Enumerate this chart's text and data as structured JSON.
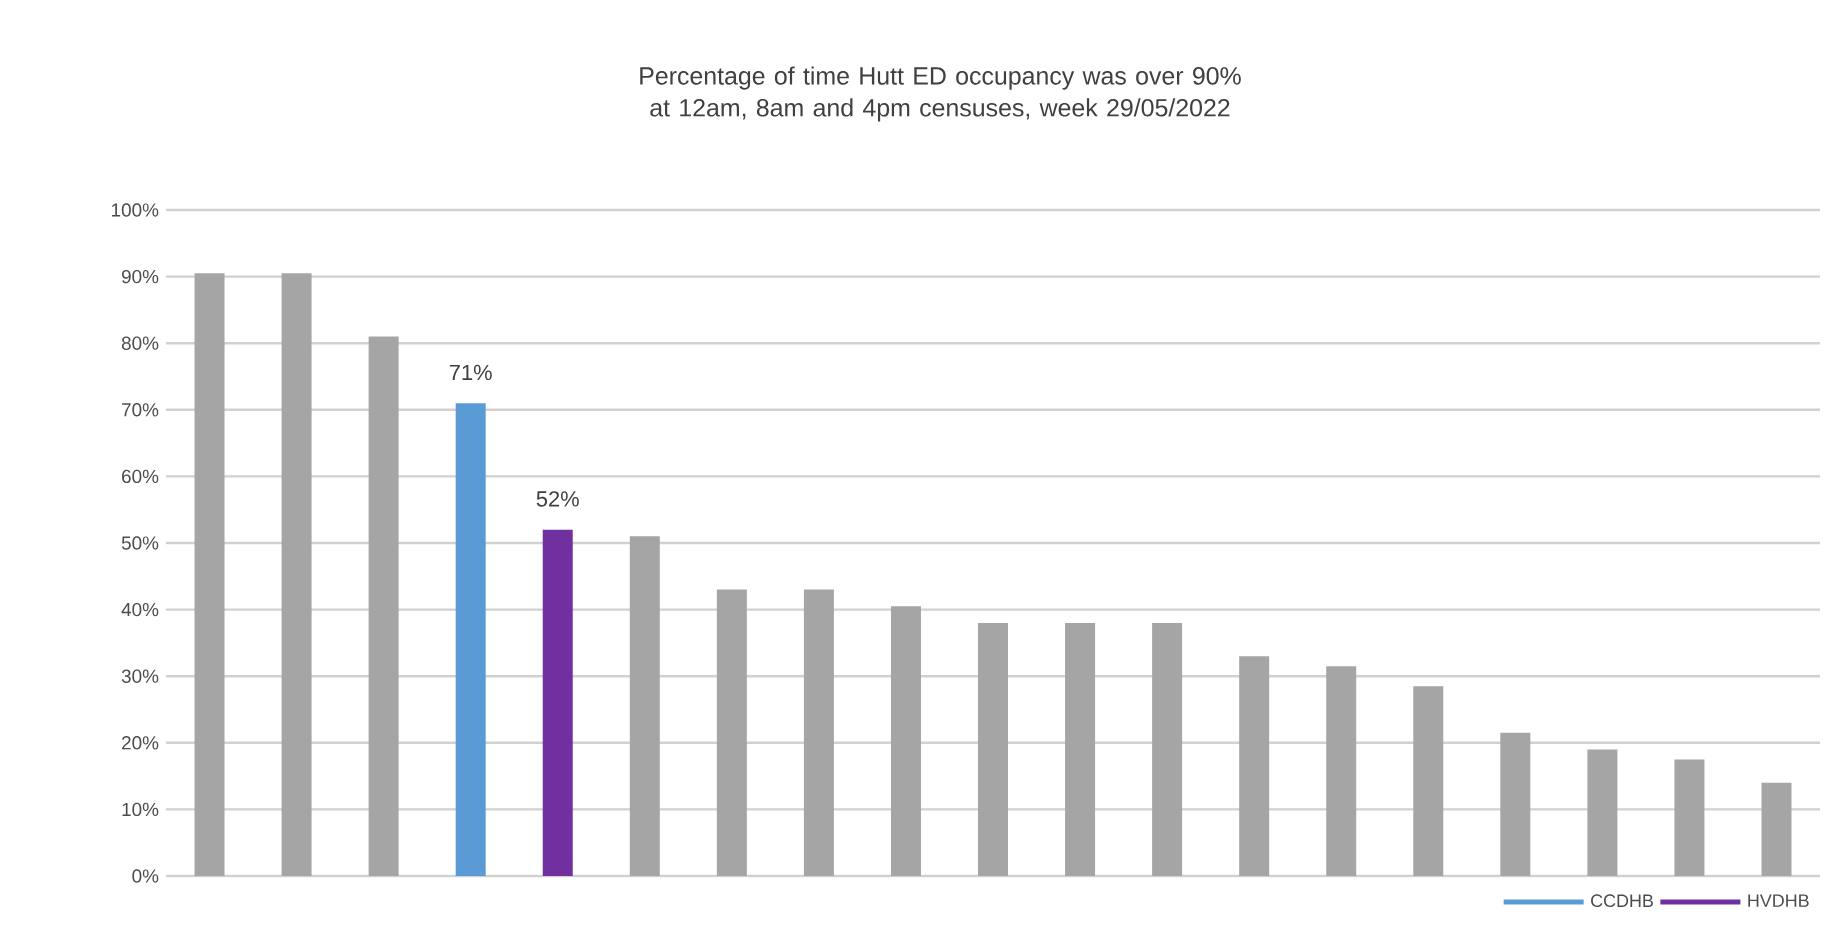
{
  "chart_data": {
    "type": "bar",
    "title": "Percentage of time Hutt ED occupancy was over 90% at 12am, 8am and 4pm censuses, week 29/05/2022",
    "categories": [
      null,
      null,
      null,
      null,
      null,
      null,
      null,
      null,
      null,
      null,
      null,
      null,
      null,
      null,
      null,
      null,
      null,
      null,
      null
    ],
    "series": [
      {
        "color": "#a5a5a5",
        "values": [
          90.5,
          90.5,
          81,
          null,
          null,
          51,
          43,
          43,
          40.5,
          38,
          38,
          38,
          33,
          31.5,
          28.5,
          21.5,
          19,
          17.5,
          14
        ]
      },
      {
        "name": "CCDHB",
        "color": "#5b9bd5",
        "values": [
          null,
          null,
          null,
          71,
          null,
          null,
          null,
          null,
          null,
          null,
          null,
          null,
          null,
          null,
          null,
          null,
          null,
          null,
          null
        ],
        "value_labels": [
          null,
          null,
          null,
          "71%",
          null,
          null,
          null,
          null,
          null,
          null,
          null,
          null,
          null,
          null,
          null,
          null,
          null,
          null,
          null
        ]
      },
      {
        "name": "HVDHB",
        "color": "#7030a0",
        "values": [
          null,
          null,
          null,
          null,
          52,
          null,
          null,
          null,
          null,
          null,
          null,
          null,
          null,
          null,
          null,
          null,
          null,
          null,
          null
        ],
        "value_labels": [
          null,
          null,
          null,
          null,
          "52%",
          null,
          null,
          null,
          null,
          null,
          null,
          null,
          null,
          null,
          null,
          null,
          null,
          null,
          null
        ]
      }
    ],
    "ylim": [
      0,
      100
    ],
    "yticks": [
      {
        "value": 0,
        "label": "0%"
      },
      {
        "value": 10,
        "label": "10%"
      },
      {
        "value": 20,
        "label": "20%"
      },
      {
        "value": 30,
        "label": "30%"
      },
      {
        "value": 40,
        "label": "40%"
      },
      {
        "value": 50,
        "label": "50%"
      },
      {
        "value": 60,
        "label": "60%"
      },
      {
        "value": 70,
        "label": "70%"
      },
      {
        "value": 80,
        "label": "80%"
      },
      {
        "value": 90,
        "label": "90%"
      },
      {
        "value": 100,
        "label": "100%"
      }
    ],
    "grid": "y",
    "legend": "bottom right"
  }
}
